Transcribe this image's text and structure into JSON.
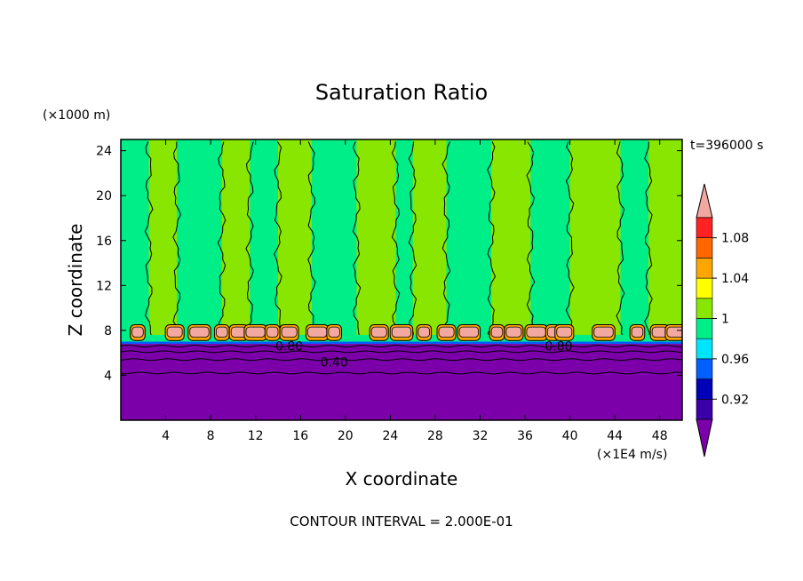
{
  "chart_data": {
    "type": "heatmap",
    "title": "Saturation Ratio",
    "xlabel": "X coordinate",
    "ylabel": "Z coordinate",
    "x_unit": "(×1E4 m/s)",
    "y_unit": "(×1000 m)",
    "xlim": [
      0,
      50
    ],
    "ylim": [
      0,
      25
    ],
    "x_ticks": [
      4,
      8,
      12,
      16,
      20,
      24,
      28,
      32,
      36,
      40,
      44,
      48
    ],
    "y_ticks": [
      4,
      8,
      12,
      16,
      20,
      24
    ],
    "time_label": "t=396000 s",
    "footer": "CONTOUR INTERVAL = 2.000E-01",
    "contour_labels": [
      {
        "text": "0.80",
        "x": 15,
        "z": 6.6
      },
      {
        "text": "0.40",
        "x": 19,
        "z": 5.2
      },
      {
        "text": "0.80",
        "x": 39,
        "z": 6.6
      }
    ],
    "colorbar": {
      "levels": [
        0.92,
        0.96,
        1,
        1.04,
        1.08
      ],
      "tick_labels": [
        "0.92",
        "0.96",
        "1",
        "1.04",
        "1.08"
      ],
      "colors": [
        "#7B00AA",
        "#3A00AA",
        "#0000B8",
        "#0060FF",
        "#00E5FF",
        "#00EE88",
        "#88E600",
        "#FFFF00",
        "#FFA500",
        "#FF6600",
        "#FF2222",
        "#F2A8A0"
      ]
    },
    "field_summary": {
      "lower_layer": {
        "z_range": [
          0,
          6.8
        ],
        "value": "< 0.92",
        "color": "#7B00AA"
      },
      "transition_band": {
        "z_range": [
          6.8,
          8.4
        ],
        "values": "1.04 – >1.08"
      },
      "upper_layer": {
        "z_range": [
          8.4,
          25
        ],
        "values": "1 – 1.04 (alternating columns)"
      }
    },
    "cloud_cells_x": [
      1.5,
      4.8,
      7,
      9,
      10.5,
      12,
      13.5,
      15,
      17.5,
      19,
      23,
      25,
      27,
      29,
      31,
      33.5,
      35,
      37,
      38.5,
      39.5,
      43,
      46,
      48,
      49.5
    ],
    "column_bounds_x": [
      0,
      2.5,
      5,
      9,
      11.5,
      14,
      17,
      21,
      24.5,
      26,
      29,
      33,
      36.5,
      40,
      44.5,
      47,
      50
    ],
    "column_types": [
      "B",
      "A",
      "B",
      "A",
      "B",
      "A",
      "B",
      "A",
      "B",
      "A",
      "B",
      "A",
      "B",
      "A",
      "B",
      "A"
    ],
    "column_colors": {
      "A": "#88E600",
      "B": "#00EE88"
    }
  }
}
